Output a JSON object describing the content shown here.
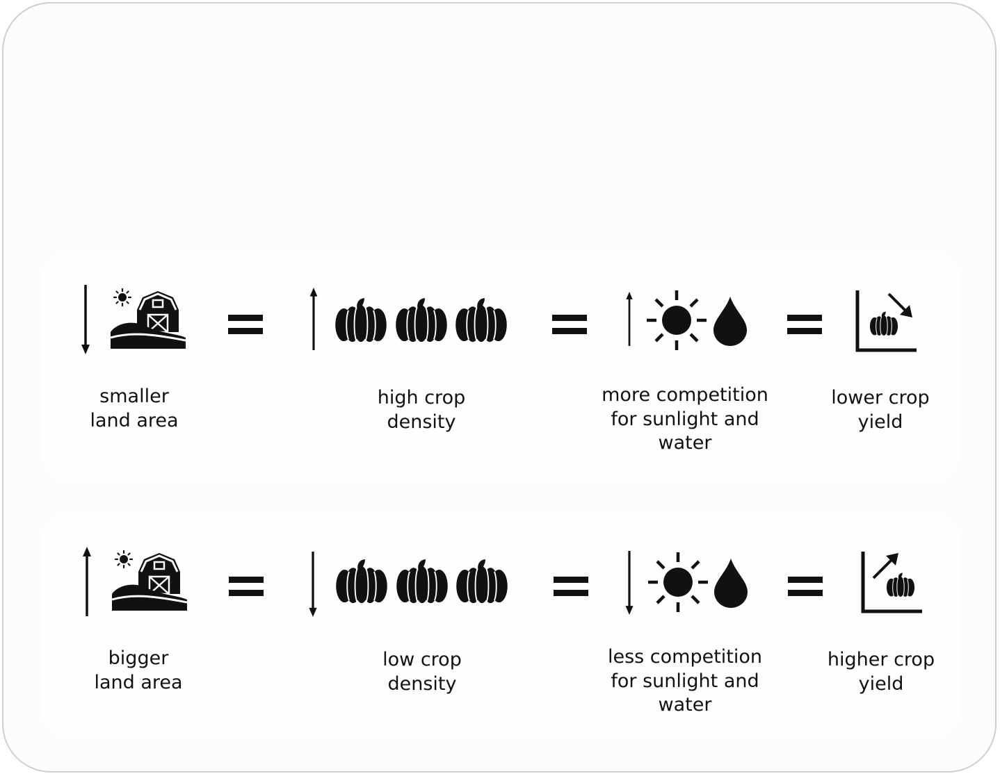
{
  "rows": [
    {
      "trend": "decrease",
      "land_label": "smaller\nland area",
      "density_trend": "increase",
      "density_label": "high crop\ndensity",
      "competition_trend": "increase",
      "competition_label": "more competition\nfor sunlight and\nwater",
      "yield_trend": "decrease",
      "yield_label": "lower crop\nyield"
    },
    {
      "trend": "increase",
      "land_label": "bigger\nland area",
      "density_trend": "decrease",
      "density_label": "low crop\ndensity",
      "competition_trend": "decrease",
      "competition_label": "less competition\nfor sunlight and\nwater",
      "yield_trend": "increase",
      "yield_label": "higher crop\nyield"
    }
  ],
  "icons": {
    "land": "farm-barn-sun-icon",
    "crop": "pumpkin-icon",
    "sun": "sun-icon",
    "water": "water-drop-icon",
    "yield": "yield-chart-icon"
  },
  "colors": {
    "ink": "#111111",
    "card_border": "#cfcfcf",
    "background": "#fcfcfc"
  }
}
